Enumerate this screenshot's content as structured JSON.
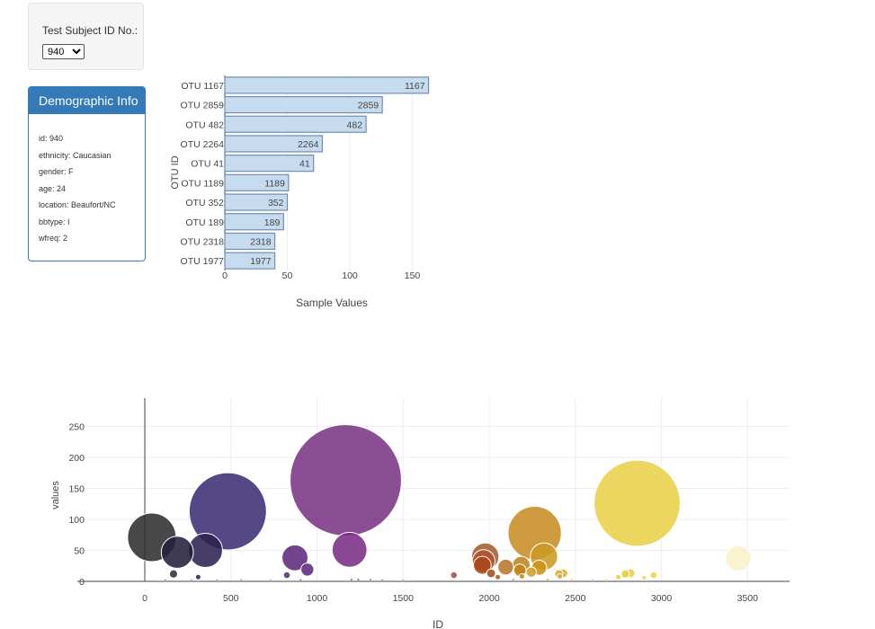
{
  "selector": {
    "label": "Test Subject ID No.:",
    "selected": "940",
    "options": [
      "940"
    ]
  },
  "demographics": {
    "title": "Demographic Info",
    "lines": [
      "id: 940",
      "ethnicity: Caucasian",
      "gender: F",
      "age: 24",
      "location: Beaufort/NC",
      "bbtype: I",
      "wfreq: 2"
    ]
  },
  "colors": {
    "panel_blue": "#337ab7",
    "bar_fill": "#c6dcee",
    "bar_stroke": "#6f8db3"
  },
  "chart_data": [
    {
      "type": "bar",
      "orientation": "horizontal",
      "categories": [
        "OTU 1167",
        "OTU 2859",
        "OTU 482",
        "OTU 2264",
        "OTU 41",
        "OTU 1189",
        "OTU 352",
        "OTU 189",
        "OTU 2318",
        "OTU 1977"
      ],
      "values": [
        163,
        126,
        113,
        78,
        71,
        51,
        50,
        47,
        40,
        40
      ],
      "data_labels": [
        "1167",
        "2859",
        "482",
        "2264",
        "41",
        "1189",
        "352",
        "189",
        "2318",
        "1977"
      ],
      "xlabel": "Sample Values",
      "ylabel": "OTU ID",
      "xlim": [
        0,
        163
      ],
      "xticks": [
        0,
        50,
        100,
        150
      ]
    },
    {
      "type": "scatter",
      "subtype": "bubble",
      "xlabel": "ID",
      "ylabel": "values",
      "xlim": [
        -200,
        3750
      ],
      "ylim": [
        -15,
        290
      ],
      "xticks": [
        0,
        500,
        1000,
        1500,
        2000,
        2500,
        3000,
        3500
      ],
      "yticks": [
        0,
        50,
        100,
        150,
        200,
        250
      ],
      "points": [
        {
          "x": 41,
          "y": 71,
          "color": "#2f2f2f"
        },
        {
          "x": 189,
          "y": 47,
          "color": "#24203a"
        },
        {
          "x": 352,
          "y": 50,
          "color": "#2c2352"
        },
        {
          "x": 482,
          "y": 113,
          "color": "#3d2f75"
        },
        {
          "x": 872,
          "y": 38,
          "color": "#5e2a7e"
        },
        {
          "x": 944,
          "y": 19,
          "color": "#5e2a7e"
        },
        {
          "x": 1167,
          "y": 163,
          "color": "#7b3585"
        },
        {
          "x": 1189,
          "y": 51,
          "color": "#7a2d85"
        },
        {
          "x": 1977,
          "y": 40,
          "color": "#a45c33"
        },
        {
          "x": 1968,
          "y": 33,
          "color": "#b0532c"
        },
        {
          "x": 1960,
          "y": 26,
          "color": "#a84818"
        },
        {
          "x": 2011,
          "y": 13,
          "color": "#a05020"
        },
        {
          "x": 2096,
          "y": 23,
          "color": "#b8762e"
        },
        {
          "x": 2186,
          "y": 26,
          "color": "#bd8324"
        },
        {
          "x": 2178,
          "y": 18,
          "color": "#c08518"
        },
        {
          "x": 2264,
          "y": 78,
          "color": "#c78e23"
        },
        {
          "x": 2318,
          "y": 40,
          "color": "#cc9a25"
        },
        {
          "x": 2290,
          "y": 22,
          "color": "#c9921a"
        },
        {
          "x": 2244,
          "y": 15,
          "color": "#d0a028"
        },
        {
          "x": 2404,
          "y": 12,
          "color": "#d4aa30"
        },
        {
          "x": 2430,
          "y": 13,
          "color": "#d8b232"
        },
        {
          "x": 2859,
          "y": 126,
          "color": "#e8d24a"
        },
        {
          "x": 2790,
          "y": 12,
          "color": "#e6cd3e"
        },
        {
          "x": 2820,
          "y": 13,
          "color": "#e6cf40"
        },
        {
          "x": 2955,
          "y": 10,
          "color": "#e8d650"
        },
        {
          "x": 3447,
          "y": 37,
          "color": "#f8f2c8"
        },
        {
          "x": 167,
          "y": 12,
          "color": "#2f2f3f"
        },
        {
          "x": 310,
          "y": 7,
          "color": "#2b2748"
        },
        {
          "x": 825,
          "y": 10,
          "color": "#5a2d80"
        },
        {
          "x": 1795,
          "y": 10,
          "color": "#a0504a"
        },
        {
          "x": 2050,
          "y": 7,
          "color": "#a05a20"
        },
        {
          "x": 2190,
          "y": 8,
          "color": "#c08a20"
        },
        {
          "x": 2410,
          "y": 8,
          "color": "#d4aa40"
        },
        {
          "x": 2750,
          "y": 7,
          "color": "#e6d040"
        },
        {
          "x": 2900,
          "y": 6,
          "color": "#e8d650"
        },
        {
          "x": 120,
          "y": 2,
          "color": "#999999"
        },
        {
          "x": 270,
          "y": 2,
          "color": "#999999"
        },
        {
          "x": 420,
          "y": 2,
          "color": "#999999"
        },
        {
          "x": 560,
          "y": 2,
          "color": "#999999"
        },
        {
          "x": 730,
          "y": 2,
          "color": "#aaaaaa"
        },
        {
          "x": 905,
          "y": 2,
          "color": "#8a5aa0"
        },
        {
          "x": 1200,
          "y": 3,
          "color": "#8a4aa0"
        },
        {
          "x": 1240,
          "y": 3,
          "color": "#8a4aa0"
        },
        {
          "x": 1310,
          "y": 3,
          "color": "#9a6aa8"
        },
        {
          "x": 1380,
          "y": 2,
          "color": "#9a7aa8"
        },
        {
          "x": 1500,
          "y": 2,
          "color": "#aaaaaa"
        },
        {
          "x": 2140,
          "y": 3,
          "color": "#c8903a"
        },
        {
          "x": 2340,
          "y": 3,
          "color": "#d0a040"
        },
        {
          "x": 2480,
          "y": 2,
          "color": "#d8b850"
        },
        {
          "x": 2600,
          "y": 2,
          "color": "#e0c860"
        },
        {
          "x": 2680,
          "y": 2,
          "color": "#e6d060"
        }
      ]
    }
  ]
}
